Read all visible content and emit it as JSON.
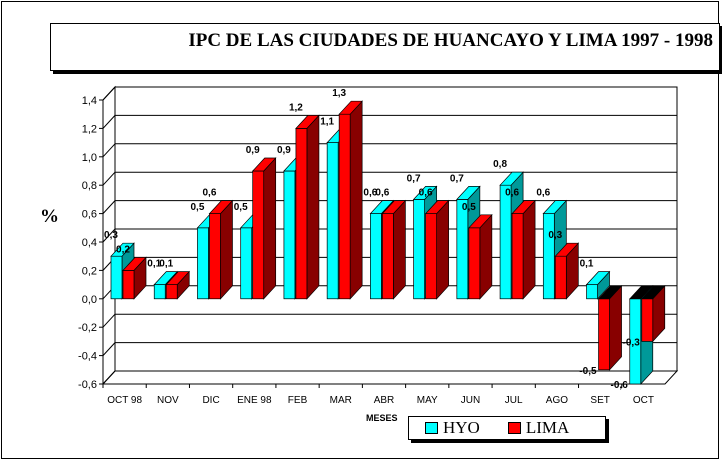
{
  "chart_data": {
    "type": "bar",
    "title": "IPC DE LAS CIUDADES DE HUANCAYO Y LIMA 1997 - 1998",
    "xlabel": "MESES",
    "ylabel": "%",
    "ylim": [
      -0.6,
      1.4
    ],
    "ytick_step": 0.2,
    "grid": true,
    "legend_position": "bottom",
    "categories": [
      "OCT  98",
      "NOV",
      "DIC",
      "ENE  98",
      "FEB",
      "MAR",
      "ABR",
      "MAY",
      "JUN",
      "JUL",
      "AGO",
      "SET",
      "OCT"
    ],
    "series": [
      {
        "name": "HYO",
        "color": "#00ffff",
        "side_color": "#009999",
        "values": [
          0.3,
          0.1,
          0.5,
          0.5,
          0.9,
          1.1,
          0.6,
          0.7,
          0.7,
          0.8,
          0.6,
          0.1,
          -0.6
        ],
        "labels": [
          "0,3",
          "0,1",
          "0,5",
          "0,5",
          "0,9",
          "1,1",
          "0,6",
          "0,7",
          "0,7",
          "0,8",
          "0,6",
          "0,1",
          "-0,6"
        ]
      },
      {
        "name": "LIMA",
        "color": "#ff0000",
        "side_color": "#880000",
        "values": [
          0.2,
          0.1,
          0.6,
          0.9,
          1.2,
          1.3,
          0.6,
          0.6,
          0.5,
          0.6,
          0.3,
          -0.5,
          -0.3
        ],
        "labels": [
          "0,2",
          "0,1",
          "0,6",
          "0,9",
          "1,2",
          "1,3",
          "0,6",
          "0,6",
          "0,5",
          "0,6",
          "0,3",
          "-0,5",
          "-0,3"
        ]
      }
    ]
  }
}
